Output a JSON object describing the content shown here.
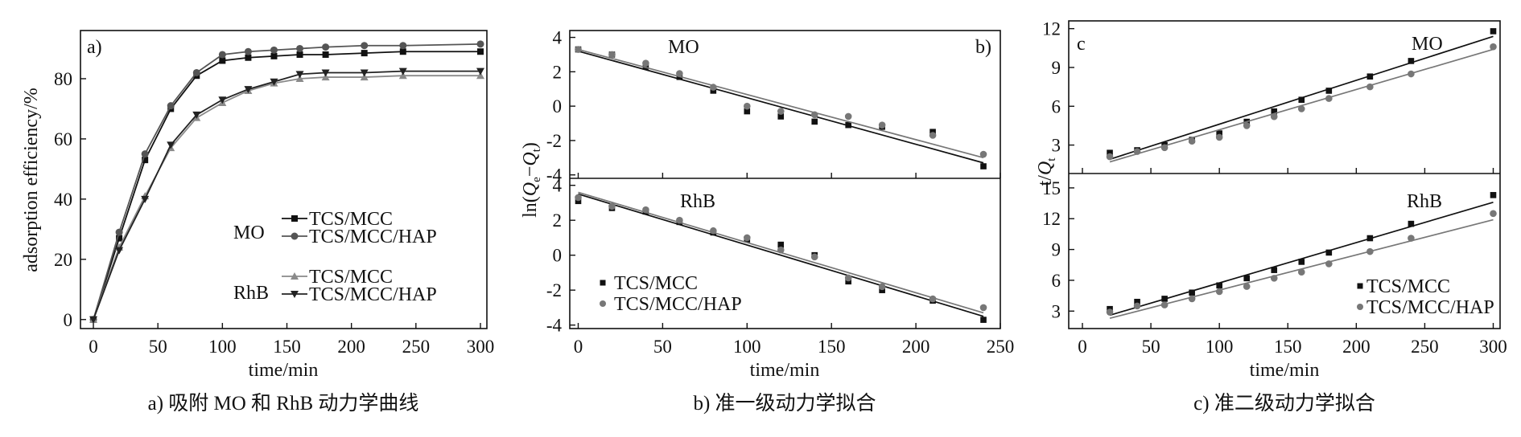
{
  "colors": {
    "dark": "#111111",
    "mid": "#555555",
    "light": "#8a8a8a"
  },
  "chart_data": [
    {
      "type": "line",
      "caption": "a) 吸附 MO 和 RhB 动力学曲线",
      "panel_label": "a)",
      "xlabel": "time/min",
      "ylabel": "adsorption efficiency/%",
      "xlim": [
        -10,
        305
      ],
      "ylim": [
        -3,
        96
      ],
      "xticks": [
        0,
        50,
        100,
        150,
        200,
        250,
        300
      ],
      "yticks": [
        0,
        20,
        40,
        60,
        80
      ],
      "x": [
        0,
        20,
        40,
        60,
        80,
        100,
        120,
        140,
        160,
        180,
        210,
        240,
        300
      ],
      "legend": {
        "group_MO": "MO",
        "group_RhB": "RhB"
      },
      "series": [
        {
          "name": "TCS/MCC",
          "group": "MO",
          "marker": "square",
          "color": "#111111",
          "values": [
            0,
            27,
            53,
            70,
            81,
            86,
            87,
            87.5,
            88,
            88,
            88.5,
            89,
            89
          ]
        },
        {
          "name": "TCS/MCC/HAP",
          "group": "MO",
          "marker": "circle",
          "color": "#555555",
          "values": [
            0,
            29,
            55,
            71,
            82,
            88,
            89,
            89.5,
            90,
            90.5,
            91,
            91,
            91.5
          ]
        },
        {
          "name": "TCS/MCC",
          "group": "RhB",
          "marker": "triangle-up",
          "color": "#8a8a8a",
          "values": [
            0,
            24,
            41,
            57,
            67,
            72,
            76,
            78.5,
            80,
            80.5,
            80.5,
            81,
            81
          ]
        },
        {
          "name": "TCS/MCC/HAP",
          "group": "RhB",
          "marker": "triangle-down",
          "color": "#222222",
          "values": [
            0,
            23,
            40,
            58,
            68,
            73,
            76.5,
            79,
            81.5,
            82,
            82,
            82.5,
            82.5
          ]
        }
      ]
    },
    {
      "type": "scatter",
      "caption": "b) 准一级动力学拟合",
      "panel_label": "b)",
      "xlabel": "time/min",
      "ylabel": "ln(Qe−Qt)",
      "xlim": [
        -5,
        250
      ],
      "xticks": [
        0,
        50,
        100,
        150,
        200,
        250
      ],
      "subplots": [
        {
          "label": "MO",
          "ylim": [
            -4.2,
            4.4
          ],
          "yticks": [
            -4,
            -2,
            0,
            2,
            4
          ],
          "series": [
            {
              "name": "TCS/MCC",
              "marker": "square",
              "color": "#111111",
              "x": [
                0,
                20,
                40,
                60,
                80,
                100,
                120,
                140,
                160,
                180,
                210,
                240
              ],
              "y": [
                3.3,
                3.0,
                2.3,
                1.7,
                0.9,
                -0.3,
                -0.6,
                -0.9,
                -1.1,
                -1.2,
                -1.5,
                -3.5
              ],
              "fit": [
                3.2,
                -3.3
              ]
            },
            {
              "name": "TCS/MCC/HAP",
              "marker": "circle",
              "color": "#777777",
              "x": [
                0,
                20,
                40,
                60,
                80,
                100,
                120,
                140,
                160,
                180,
                210,
                240
              ],
              "y": [
                3.3,
                3.0,
                2.5,
                1.9,
                1.1,
                0.0,
                -0.3,
                -0.5,
                -0.6,
                -1.1,
                -1.7,
                -2.8
              ],
              "fit": [
                3.3,
                -3.0
              ]
            }
          ]
        },
        {
          "label": "RhB",
          "ylim": [
            -4.2,
            4.4
          ],
          "yticks": [
            -4,
            -2,
            0,
            2,
            4
          ],
          "series": [
            {
              "name": "TCS/MCC",
              "marker": "square",
              "color": "#111111",
              "x": [
                0,
                20,
                40,
                60,
                80,
                100,
                120,
                140,
                160,
                180,
                210,
                240
              ],
              "y": [
                3.1,
                2.7,
                2.5,
                1.9,
                1.3,
                0.9,
                0.6,
                0.0,
                -1.5,
                -2.0,
                -2.6,
                -3.7
              ],
              "fit": [
                3.5,
                -3.5
              ]
            },
            {
              "name": "TCS/MCC/HAP",
              "marker": "circle",
              "color": "#777777",
              "x": [
                0,
                20,
                40,
                60,
                80,
                100,
                120,
                140,
                160,
                180,
                210,
                240
              ],
              "y": [
                3.3,
                2.8,
                2.6,
                2.0,
                1.4,
                1.0,
                0.3,
                -0.1,
                -1.3,
                -1.8,
                -2.5,
                -3.0
              ],
              "fit": [
                3.6,
                -3.3
              ]
            }
          ]
        }
      ],
      "legend": [
        "TCS/MCC",
        "TCS/MCC/HAP"
      ]
    },
    {
      "type": "scatter",
      "caption": "c) 准二级动力学拟合",
      "panel_label": "c",
      "xlabel": "time/min",
      "ylabel": "t/Qt",
      "xlim": [
        -10,
        305
      ],
      "xticks": [
        0,
        50,
        100,
        150,
        200,
        250,
        300
      ],
      "subplots": [
        {
          "label": "MO",
          "ylim": [
            0.8,
            12.6
          ],
          "yticks": [
            3,
            6,
            9,
            12
          ],
          "series": [
            {
              "name": "TCS/MCC",
              "marker": "square",
              "color": "#111111",
              "x": [
                20,
                40,
                60,
                80,
                100,
                120,
                140,
                160,
                180,
                210,
                240,
                300
              ],
              "y": [
                2.4,
                2.6,
                3.0,
                3.4,
                3.9,
                4.8,
                5.6,
                6.5,
                7.2,
                8.3,
                9.5,
                11.8
              ],
              "fit": [
                [
                  20,
                  1.9
                ],
                [
                  300,
                  11.4
                ]
              ]
            },
            {
              "name": "TCS/MCC/HAP",
              "marker": "circle",
              "color": "#777777",
              "x": [
                20,
                40,
                60,
                80,
                100,
                120,
                140,
                160,
                180,
                210,
                240,
                300
              ],
              "y": [
                2.1,
                2.5,
                2.8,
                3.3,
                3.6,
                4.5,
                5.2,
                5.8,
                6.6,
                7.5,
                8.5,
                10.6
              ],
              "fit": [
                [
                  20,
                  1.7
                ],
                [
                  300,
                  10.4
                ]
              ]
            }
          ]
        },
        {
          "label": "RhB",
          "ylim": [
            1.3,
            16.4
          ],
          "yticks": [
            3,
            6,
            9,
            12,
            15
          ],
          "series": [
            {
              "name": "TCS/MCC",
              "marker": "square",
              "color": "#111111",
              "x": [
                20,
                40,
                60,
                80,
                100,
                120,
                140,
                160,
                180,
                210,
                240,
                300
              ],
              "y": [
                3.2,
                3.9,
                4.2,
                4.8,
                5.5,
                6.2,
                7.0,
                7.8,
                8.7,
                10.1,
                11.5,
                14.3
              ],
              "fit": [
                [
                  20,
                  2.6
                ],
                [
                  300,
                  13.6
                ]
              ]
            },
            {
              "name": "TCS/MCC/HAP",
              "marker": "circle",
              "color": "#777777",
              "x": [
                20,
                40,
                60,
                80,
                100,
                120,
                140,
                160,
                180,
                210,
                240,
                300
              ],
              "y": [
                2.9,
                3.5,
                3.6,
                4.2,
                4.9,
                5.4,
                6.2,
                6.8,
                7.6,
                8.8,
                10.1,
                12.5
              ],
              "fit": [
                [
                  20,
                  2.3
                ],
                [
                  300,
                  11.9
                ]
              ]
            }
          ]
        }
      ],
      "legend": [
        "TCS/MCC",
        "TCS/MCC/HAP"
      ]
    }
  ]
}
